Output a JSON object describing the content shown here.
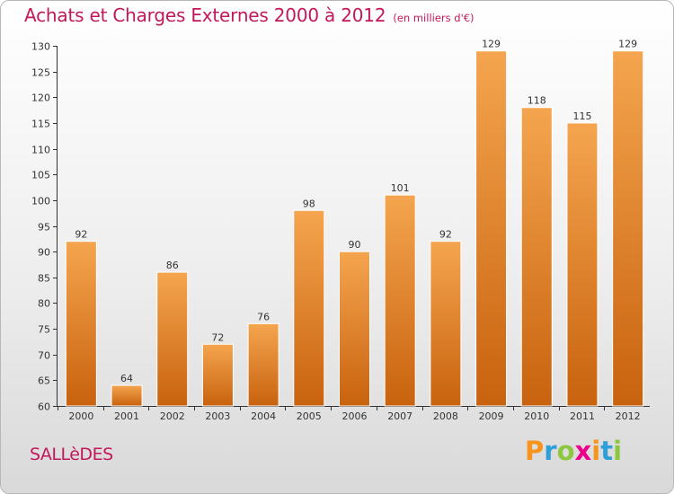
{
  "title": "Achats et Charges Externes 2000 à 2012",
  "subtitle": "(en milliers d'€)",
  "commune": "SALLèDES",
  "logo": {
    "letters": [
      "P",
      "r",
      "o",
      "x",
      "i",
      "t",
      "i"
    ],
    "colors": [
      "#f7941d",
      "#2e9fd8",
      "#8dc63f",
      "#ec008c",
      "#f7941d",
      "#2e9fd8",
      "#8dc63f"
    ]
  },
  "colors": {
    "bar_top": "#f5a54f",
    "bar_bottom": "#c8620e",
    "accent": "#c2185b"
  },
  "chart_data": {
    "type": "bar",
    "categories": [
      "2000",
      "2001",
      "2002",
      "2003",
      "2004",
      "2005",
      "2006",
      "2007",
      "2008",
      "2009",
      "2010",
      "2011",
      "2012"
    ],
    "values": [
      92,
      64,
      86,
      72,
      76,
      98,
      90,
      101,
      92,
      129,
      118,
      115,
      129
    ],
    "title": "Achats et Charges Externes 2000 à 2012",
    "xlabel": "",
    "ylabel": "",
    "ylim": [
      60,
      130
    ],
    "yticks": [
      60,
      65,
      70,
      75,
      80,
      85,
      90,
      95,
      100,
      105,
      110,
      115,
      120,
      125,
      130
    ],
    "grid": false,
    "data_labels": true
  }
}
